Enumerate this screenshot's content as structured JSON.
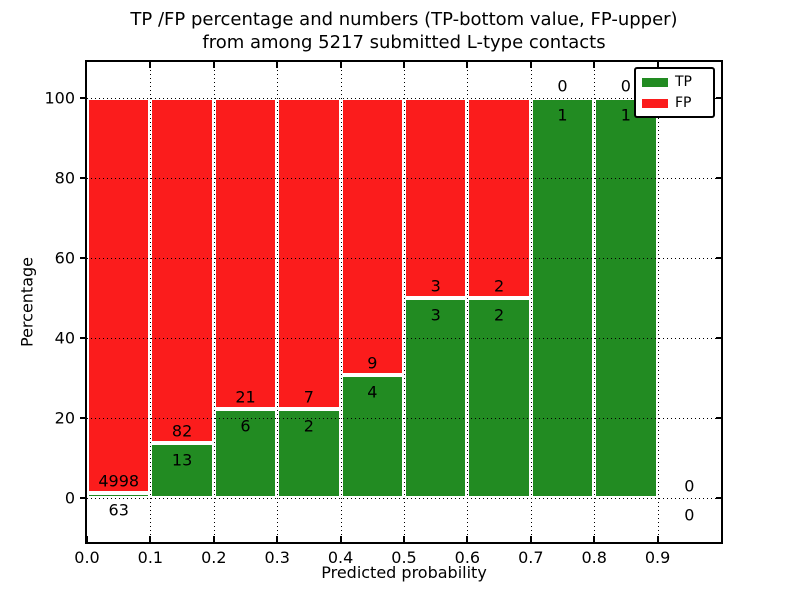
{
  "chart_data": {
    "type": "bar",
    "stacking": "percentage",
    "title": "TP /FP percentage and numbers (TP-bottom value, FP-upper)\nfrom among 5217 submitted L-type contacts",
    "title_lines": [
      "TP /FP percentage and numbers (TP-bottom value, FP-upper)",
      "from among 5217 submitted L-type contacts"
    ],
    "xlabel": "Predicted probability",
    "ylabel": "Percentage",
    "xlim": [
      0.0,
      1.0
    ],
    "ylim": [
      -11,
      109
    ],
    "xtick_labels": [
      "0.0",
      "0.1",
      "0.2",
      "0.3",
      "0.4",
      "0.5",
      "0.6",
      "0.7",
      "0.8",
      "0.9"
    ],
    "ytick_labels": [
      "0",
      "20",
      "40",
      "60",
      "80",
      "100"
    ],
    "grid": true,
    "grid_style": "dotted",
    "total_submitted": 5217,
    "bin_edges": [
      0.0,
      0.1,
      0.2,
      0.3,
      0.4,
      0.5,
      0.6,
      0.7,
      0.8,
      0.9,
      1.0
    ],
    "series": [
      {
        "name": "TP",
        "role": "bottom",
        "color": "#228b22",
        "counts": [
          63,
          13,
          6,
          2,
          4,
          3,
          2,
          1,
          1,
          0
        ]
      },
      {
        "name": "FP",
        "role": "top",
        "color": "#fb1c1c",
        "counts": [
          4998,
          82,
          21,
          7,
          9,
          3,
          2,
          0,
          0,
          0
        ]
      }
    ],
    "tp_percent_by_bin": [
      1.2,
      13.7,
      22.2,
      22.2,
      30.8,
      50.0,
      50.0,
      100.0,
      100.0,
      null
    ],
    "bar_edge_color": "#ffffff",
    "legend": {
      "position": "upper-right",
      "entries": [
        {
          "label": "TP",
          "color": "#228b22"
        },
        {
          "label": "FP",
          "color": "#fb1c1c"
        }
      ]
    }
  },
  "colors": {
    "background": "#ffffff",
    "text": "#000000",
    "tp_green": "#228b22",
    "fp_red": "#fb1c1c"
  }
}
